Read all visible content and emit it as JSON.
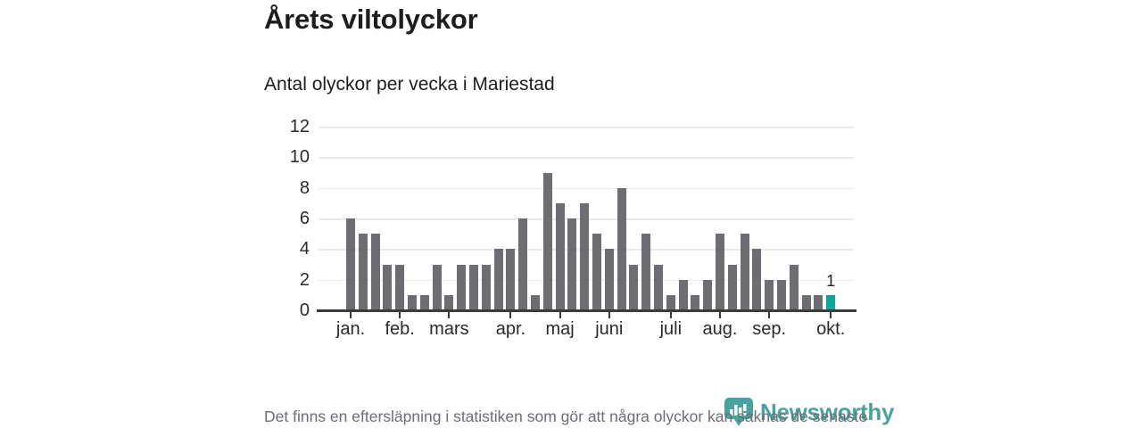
{
  "title": "Årets viltolyckor",
  "subtitle": "Antal olyckor per vecka i Mariestad",
  "footer_note": "Det finns en eftersläpning i statistiken som gör att några olyckor kan saknas de senaste veckorna.",
  "branding": {
    "name": "Newsworthy",
    "icon": "newsworthy-pin-barchart-icon"
  },
  "colors": {
    "bar": "#6d6d73",
    "highlight": "#0ba79b",
    "axis": "#3b3b3b",
    "grid": "#ebebeb",
    "title_text": "#1d1d1b",
    "muted_text": "#6d6d74",
    "brand_teal": "#3f9e9a"
  },
  "chart_data": {
    "type": "bar",
    "title": "Årets viltolyckor",
    "subtitle": "Antal olyckor per vecka i Mariestad",
    "x_unit": "week",
    "values": [
      6,
      5,
      5,
      3,
      3,
      1,
      1,
      3,
      1,
      3,
      3,
      3,
      4,
      4,
      6,
      1,
      9,
      7,
      6,
      7,
      5,
      4,
      8,
      3,
      5,
      3,
      1,
      2,
      1,
      2,
      5,
      3,
      5,
      4,
      2,
      2,
      3,
      1,
      1,
      1
    ],
    "highlight_index": 39,
    "highlight_label": "1",
    "ylim": [
      0,
      12
    ],
    "y_ticks": [
      0,
      2,
      4,
      6,
      8,
      10,
      12
    ],
    "month_ticks": [
      {
        "label": "jan.",
        "index": 0
      },
      {
        "label": "feb.",
        "index": 4
      },
      {
        "label": "mars",
        "index": 8
      },
      {
        "label": "apr.",
        "index": 13
      },
      {
        "label": "maj",
        "index": 17
      },
      {
        "label": "juni",
        "index": 21
      },
      {
        "label": "juli",
        "index": 26
      },
      {
        "label": "aug.",
        "index": 30
      },
      {
        "label": "sep.",
        "index": 34
      },
      {
        "label": "okt.",
        "index": 39
      }
    ],
    "grid": true,
    "legend": null
  }
}
